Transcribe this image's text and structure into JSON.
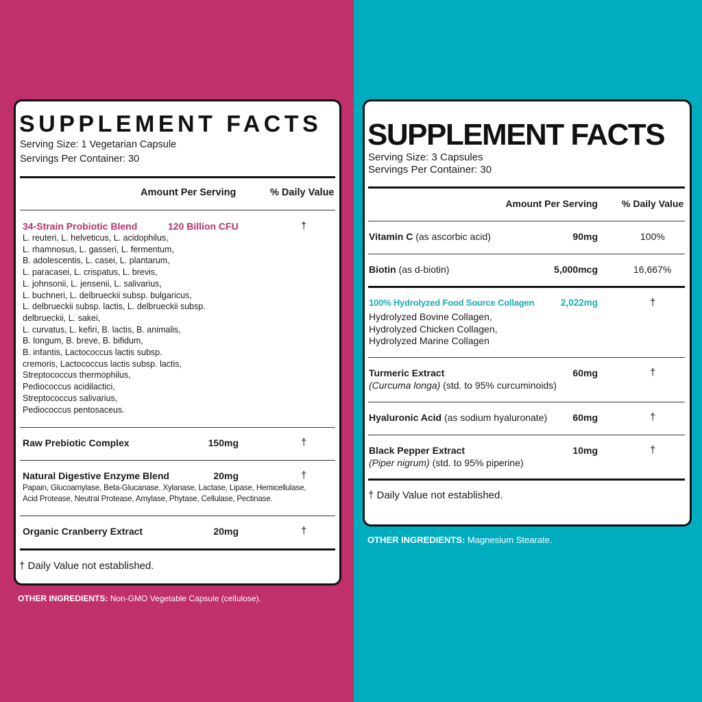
{
  "colors": {
    "left_bg": "#c0306a",
    "right_bg": "#00adbf",
    "left_accent": "#b8306e",
    "right_accent": "#1aaab8"
  },
  "left": {
    "title": "SUPPLEMENT FACTS",
    "serving_size": "Serving Size: 1 Vegetarian Capsule",
    "servings_per_container": "Servings Per Container: 30",
    "header_amount": "Amount Per Serving",
    "header_dv": "% Daily Value",
    "rows": [
      {
        "name": "34-Strain Probiotic Blend",
        "amount": "120 Billion CFU",
        "dv": "†",
        "details": [
          "L. reuteri, L. helveticus, L. acidophilus,",
          "L. rhamnosus, L. gasseri, L. fermentum,",
          "B. adolescentis, L. casei, L. plantarum,",
          "L. paracasei, L. crispatus, L. brevis,",
          "L. johnsonii, L. jensenii, L. salivarius,",
          "L. buchneri, L. delbrueckii subsp. bulgaricus,",
          "L. delbrueckii subsp. lactis, L. delbrueckii subsp.",
          "delbrueckii, L. sakei,",
          "L. curvatus, L. kefiri, B. lactis, B. animalis,",
          "B. longum, B. breve, B. bifidum,",
          "B. infantis, Lactococcus lactis subsp.",
          "cremoris, Lactococcus lactis subsp. lactis,",
          "Streptococcus thermophilus,",
          "Pediococcus acidilactici,",
          "Streptococcus salivarius,",
          "Pediococcus pentosaceus."
        ]
      },
      {
        "name": "Raw Prebiotic Complex",
        "amount": "150mg",
        "dv": "†"
      },
      {
        "name": "Natural Digestive Enzyme Blend",
        "amount": "20mg",
        "dv": "†",
        "details": [
          "Papain, Glucoamylase, Beta-Glucanase, Xylanase, Lactase, Lipase, Hemicellulase,",
          "Acid Protease, Neutral Protease, Amylase, Phytase, Cellulase, Pectinase."
        ]
      },
      {
        "name": "Organic Cranberry Extract",
        "amount": "20mg",
        "dv": "†"
      }
    ],
    "footnote": "† Daily Value not established.",
    "other_label": "OTHER INGREDIENTS:",
    "other_value": "Non-GMO Vegetable Capsule (cellulose)."
  },
  "right": {
    "title": "SUPPLEMENT FACTS",
    "serving_size": "Serving Size: 3 Capsules",
    "servings_per_container": "Servings Per Container: 30",
    "header_amount": "Amount Per Serving",
    "header_dv": "% Daily Value",
    "rows": [
      {
        "name": "Vitamin C",
        "qualifier": "(as ascorbic acid)",
        "amount": "90mg",
        "dv": "100%"
      },
      {
        "name": "Biotin",
        "qualifier": "(as d-biotin)",
        "amount": "5,000mcg",
        "dv": "16,667%"
      },
      {
        "name": "100% Hydrolyzed Food Source Collagen",
        "amount": "2,022mg",
        "dv": "†",
        "details": [
          "Hydrolyzed Bovine Collagen,",
          "Hydrolyzed Chicken Collagen,",
          "Hydrolyzed Marine Collagen"
        ]
      },
      {
        "name": "Turmeric Extract",
        "amount": "60mg",
        "dv": "†",
        "latin": "(Curcuma longa)",
        "std": "(std. to 95% curcuminoids)"
      },
      {
        "name": "Hyaluronic Acid",
        "qualifier": "(as sodium hyaluronate)",
        "amount": "60mg",
        "dv": "†"
      },
      {
        "name": "Black Pepper Extract",
        "amount": "10mg",
        "dv": "†",
        "latin": "(Piper nigrum)",
        "std": "(std. to 95% piperine)"
      }
    ],
    "footnote": "† Daily Value not established.",
    "other_label": "OTHER INGREDIENTS:",
    "other_value": "Magnesium Stearate."
  }
}
